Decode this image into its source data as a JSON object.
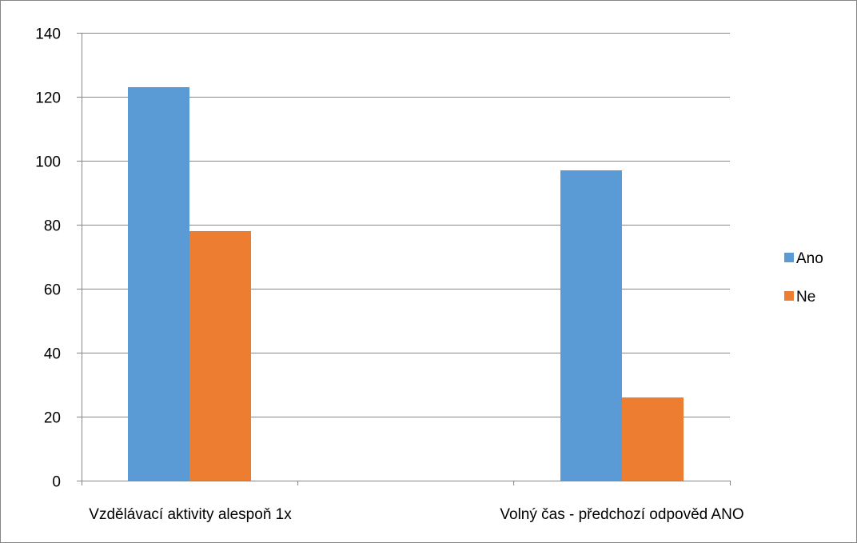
{
  "chart_data": {
    "type": "bar",
    "categories": [
      "Vzdělávací aktivity alespoň 1x",
      "Volný čas - předchozí odpověd ANO"
    ],
    "series": [
      {
        "name": "Ano",
        "values": [
          123,
          97
        ],
        "color": "#5B9BD5"
      },
      {
        "name": "Ne",
        "values": [
          78,
          26
        ],
        "color": "#ED7D31"
      }
    ],
    "ylim": [
      0,
      140
    ],
    "yticks": [
      0,
      20,
      40,
      60,
      80,
      100,
      120,
      140
    ],
    "grid": true,
    "legend_position": "right",
    "axis_color": "#868686",
    "grid_color": "#868686"
  }
}
